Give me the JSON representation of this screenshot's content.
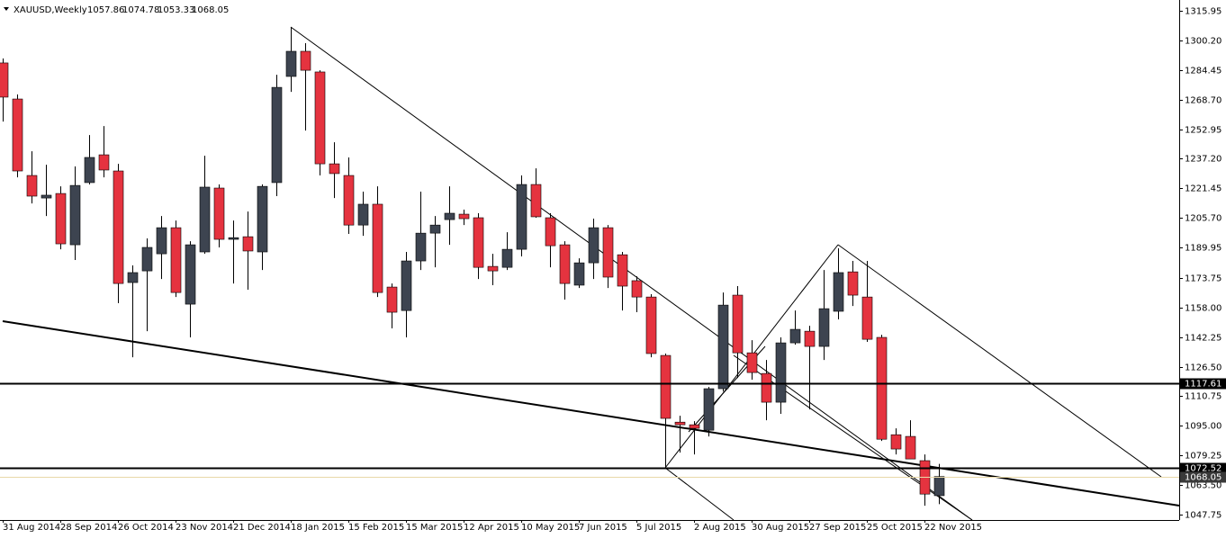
{
  "chart_data": {
    "type": "candlestick",
    "title": "XAUUSD,Weekly",
    "categories": [
      "31 Aug 2014",
      null,
      null,
      null,
      "28 Sep 2014",
      null,
      null,
      null,
      "26 Oct 2014",
      null,
      null,
      null,
      "23 Nov 2014",
      null,
      null,
      null,
      "21 Dec 2014",
      null,
      null,
      null,
      "18 Jan 2015",
      null,
      null,
      null,
      "15 Feb 2015",
      null,
      null,
      null,
      "15 Mar 2015",
      null,
      null,
      null,
      "12 Apr 2015",
      null,
      null,
      null,
      "10 May 2015",
      null,
      null,
      null,
      "7 Jun 2015",
      null,
      null,
      null,
      "5 Jul 2015",
      null,
      null,
      null,
      "2 Aug 2015",
      null,
      null,
      null,
      "30 Aug 2015",
      null,
      null,
      null,
      "27 Sep 2015",
      null,
      null,
      null,
      "25 Oct 2015",
      null,
      null,
      null,
      "22 Nov 2015",
      null
    ],
    "open": [
      1288.2,
      1269.0,
      1228.3,
      1216.3,
      1218.7,
      1191.4,
      1224.5,
      1239.3,
      1230.7,
      1171.3,
      1177.5,
      1186.6,
      1200.5,
      1159.8,
      1187.6,
      1221.6,
      1194.3,
      1195.7,
      1187.6,
      1224.5,
      1281.0,
      1294.4,
      1283.4,
      1234.5,
      1228.3,
      1201.9,
      1213.0,
      1168.9,
      1156.4,
      1182.8,
      1197.6,
      1204.8,
      1207.7,
      1205.8,
      1179.9,
      1179.4,
      1189.0,
      1223.5,
      1205.8,
      1191.4,
      1169.9,
      1181.8,
      1200.5,
      1186.1,
      1172.3,
      1163.6,
      1132.5,
      1097.0,
      1095.6,
      1092.7,
      1114.8,
      1164.6,
      1133.9,
      1122.9,
      1107.6,
      1139.2,
      1145.4,
      1137.3,
      1156.0,
      1177.0,
      1163.6,
      1142.1,
      1090.3,
      1089.4,
      1076.5,
      1057.86
    ],
    "high": [
      1290.6,
      1271.4,
      1241.2,
      1234.0,
      1222.5,
      1233.1,
      1249.8,
      1254.6,
      1234.5,
      1180.4,
      1194.8,
      1206.7,
      1204.3,
      1193.3,
      1238.8,
      1223.5,
      1204.3,
      1209.1,
      1223.5,
      1281.9,
      1307.3,
      1298.7,
      1284.3,
      1246.0,
      1237.9,
      1219.7,
      1222.5,
      1170.8,
      1187.6,
      1219.7,
      1206.7,
      1222.5,
      1210.1,
      1208.2,
      1186.6,
      1198.1,
      1228.3,
      1232.1,
      1208.2,
      1193.3,
      1184.2,
      1205.3,
      1201.9,
      1187.6,
      1174.6,
      1165.1,
      1133.5,
      1100.4,
      1097.5,
      1115.7,
      1166.0,
      1169.4,
      1140.6,
      1130.1,
      1142.1,
      1156.4,
      1148.3,
      1178.0,
      1189.5,
      1182.8,
      1182.8,
      1143.5,
      1093.7,
      1098.0,
      1079.8,
      1074.78
    ],
    "low": [
      1257.0,
      1227.3,
      1213.4,
      1206.7,
      1189.0,
      1183.3,
      1223.5,
      1227.3,
      1160.3,
      1131.5,
      1145.4,
      1173.2,
      1163.6,
      1142.1,
      1186.6,
      1190.0,
      1170.8,
      1167.5,
      1178.0,
      1217.3,
      1272.8,
      1252.2,
      1228.3,
      1216.3,
      1197.2,
      1196.2,
      1163.6,
      1146.9,
      1142.1,
      1178.0,
      1179.4,
      1191.4,
      1201.9,
      1173.2,
      1169.9,
      1178.0,
      1185.2,
      1205.8,
      1179.4,
      1162.2,
      1168.4,
      1173.2,
      1168.4,
      1156.4,
      1155.5,
      1131.5,
      1072.6,
      1080.8,
      1079.8,
      1089.4,
      1113.3,
      1120.5,
      1119.6,
      1098.0,
      1101.4,
      1138.2,
      1103.8,
      1130.1,
      1151.7,
      1158.8,
      1139.7,
      1087.0,
      1079.8,
      1077.4,
      1052.5,
      1053.33
    ],
    "close": [
      1270.0,
      1230.7,
      1217.3,
      1217.8,
      1191.9,
      1223.0,
      1237.9,
      1231.2,
      1170.8,
      1176.6,
      1190.0,
      1200.5,
      1166.0,
      1191.4,
      1222.1,
      1194.3,
      1195.2,
      1188.1,
      1222.5,
      1275.2,
      1294.4,
      1284.3,
      1234.5,
      1229.3,
      1201.9,
      1213.0,
      1166.0,
      1155.5,
      1182.8,
      1197.6,
      1201.9,
      1208.2,
      1205.3,
      1179.4,
      1177.5,
      1189.0,
      1223.5,
      1206.3,
      1190.9,
      1170.8,
      1181.8,
      1200.5,
      1174.2,
      1169.4,
      1163.6,
      1133.5,
      1099.0,
      1095.6,
      1093.7,
      1114.8,
      1159.3,
      1133.9,
      1123.4,
      1107.6,
      1139.2,
      1146.4,
      1137.3,
      1157.4,
      1176.6,
      1164.6,
      1141.1,
      1087.9,
      1082.7,
      1077.4,
      1058.7,
      1068.05
    ],
    "up_color": "#3d4450",
    "down_color": "#e5333f",
    "ylim": [
      1044.9,
      1321.7
    ],
    "yticks": [
      1315.95,
      {
        "value": 1300.2,
        "label": "1300.20"
      },
      1284.45,
      {
        "value": 1268.7,
        "label": "1268.70"
      },
      1252.95,
      {
        "value": 1237.2,
        "label": "1237.20"
      },
      1221.45,
      {
        "value": 1205.7,
        "label": "1205.70"
      },
      1189.95,
      1173.75,
      {
        "value": 1158,
        "label": "1158.00"
      },
      1142.25,
      {
        "value": 1126.5,
        "label": "1126.50"
      },
      1110.75,
      {
        "value": 1095,
        "label": "1095.00"
      },
      1079.25,
      {
        "value": 1063.5,
        "label": "1063.50"
      },
      1047.75
    ],
    "hlines": [
      1117.61,
      1072.52
    ]
  }
}
